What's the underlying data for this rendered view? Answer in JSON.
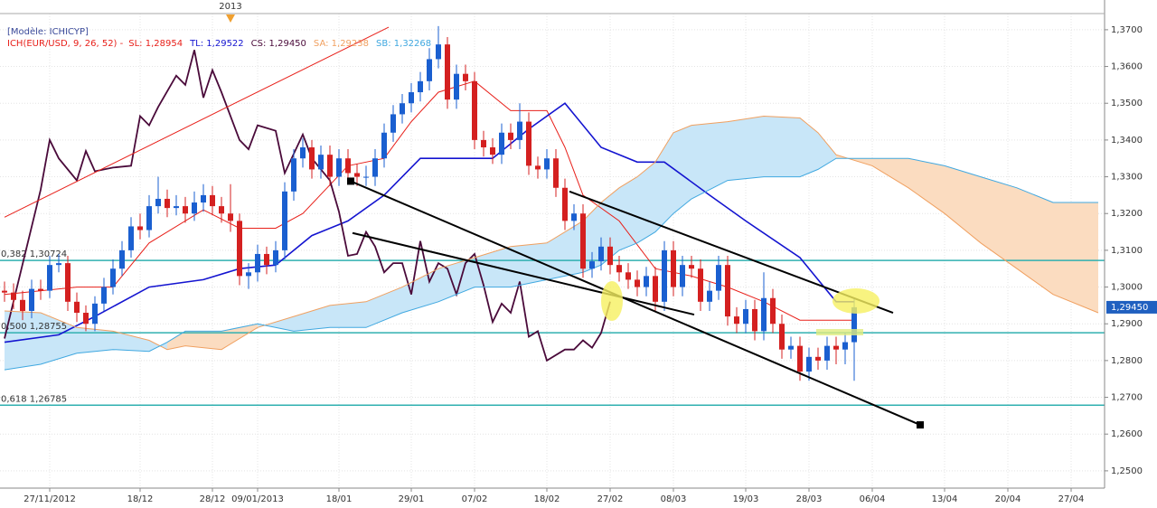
{
  "chart_data": {
    "type": "candlestick",
    "title": "[Modèle: ICHICYP]",
    "indicator": "ICH(EUR/USD, 9, 26, 52) -",
    "xlim": [
      -0.5,
      121.7
    ],
    "xticks": [
      {
        "value": 5,
        "label": "27/11/2012"
      },
      {
        "value": 15,
        "label": "18/12"
      },
      {
        "value": 23,
        "label": "28/12"
      },
      {
        "value": 28,
        "label": "09/01/2013"
      },
      {
        "value": 37,
        "label": "18/01"
      },
      {
        "value": 45,
        "label": "29/01"
      },
      {
        "value": 52,
        "label": "07/02"
      },
      {
        "value": 60,
        "label": "18/02"
      },
      {
        "value": 67,
        "label": "27/02"
      },
      {
        "value": 74,
        "label": "08/03"
      },
      {
        "value": 82,
        "label": "19/03"
      },
      {
        "value": 89,
        "label": "28/03"
      },
      {
        "value": 96,
        "label": "06/04"
      },
      {
        "value": 104,
        "label": "13/04"
      },
      {
        "value": 111,
        "label": "20/04"
      },
      {
        "value": 118,
        "label": "27/04"
      }
    ],
    "ylim": [
      1.2453,
      1.3744
    ],
    "yticks": [
      {
        "value": 1.25,
        "label": "1,2500"
      },
      {
        "value": 1.26,
        "label": "1,2600"
      },
      {
        "value": 1.27,
        "label": "1,2700"
      },
      {
        "value": 1.28,
        "label": "1,2800"
      },
      {
        "value": 1.29,
        "label": "1,2900"
      },
      {
        "value": 1.3,
        "label": "1,3000"
      },
      {
        "value": 1.31,
        "label": "1,3100"
      },
      {
        "value": 1.32,
        "label": "1,3200"
      },
      {
        "value": 1.33,
        "label": "1,3300"
      },
      {
        "value": 1.34,
        "label": "1,3400"
      },
      {
        "value": 1.35,
        "label": "1,3500"
      },
      {
        "value": 1.36,
        "label": "1,3600"
      },
      {
        "value": 1.37,
        "label": "1,3700"
      }
    ],
    "grid": true,
    "up_color": "#1a5fd0",
    "down_color": "#d42020",
    "open": [
      1.299,
      1.2985,
      1.2965,
      1.2935,
      1.2995,
      1.299,
      1.306,
      1.3065,
      1.296,
      1.293,
      1.29,
      1.2955,
      1.3,
      1.305,
      1.31,
      1.3165,
      1.3155,
      1.322,
      1.324,
      1.3215,
      1.322,
      1.32,
      1.323,
      1.325,
      1.322,
      1.32,
      1.318,
      1.303,
      1.304,
      1.309,
      1.306,
      1.31,
      1.326,
      1.335,
      1.338,
      1.332,
      1.336,
      1.33,
      1.335,
      1.331,
      1.33,
      1.33,
      1.335,
      1.342,
      1.347,
      1.35,
      1.353,
      1.356,
      1.362,
      1.366,
      1.351,
      1.358,
      1.356,
      1.34,
      1.338,
      1.336,
      1.342,
      1.34,
      1.345,
      1.333,
      1.332,
      1.335,
      1.327,
      1.318,
      1.32,
      1.305,
      1.307,
      1.311,
      1.306,
      1.304,
      1.302,
      1.3,
      1.303,
      1.296,
      1.31,
      1.3,
      1.306,
      1.305,
      1.296,
      1.299,
      1.306,
      1.292,
      1.29,
      1.294,
      1.288,
      1.297,
      1.29,
      1.283,
      1.284,
      1.277,
      1.281,
      1.28,
      1.284,
      1.283,
      1.285
    ],
    "high": [
      1.3015,
      1.301,
      1.299,
      1.302,
      1.302,
      1.3085,
      1.309,
      1.3085,
      1.2985,
      1.295,
      1.2975,
      1.3025,
      1.3075,
      1.3125,
      1.319,
      1.32,
      1.325,
      1.33,
      1.3265,
      1.325,
      1.3245,
      1.326,
      1.328,
      1.3275,
      1.3245,
      1.328,
      1.32,
      1.3065,
      1.3115,
      1.311,
      1.3125,
      1.3285,
      1.3375,
      1.3405,
      1.34,
      1.3385,
      1.3385,
      1.3375,
      1.3375,
      1.3335,
      1.333,
      1.3375,
      1.3445,
      1.3495,
      1.3525,
      1.3555,
      1.3585,
      1.365,
      1.371,
      1.368,
      1.3605,
      1.3605,
      1.3585,
      1.3425,
      1.3405,
      1.3445,
      1.3445,
      1.35,
      1.3475,
      1.3355,
      1.3375,
      1.3375,
      1.3295,
      1.3225,
      1.3225,
      1.3095,
      1.3135,
      1.3135,
      1.3085,
      1.3065,
      1.3045,
      1.3055,
      1.3055,
      1.3125,
      1.3125,
      1.3085,
      1.3085,
      1.3075,
      1.3015,
      1.3085,
      1.3085,
      1.2945,
      1.2965,
      1.2965,
      1.304,
      1.2995,
      1.2925,
      1.2865,
      1.2865,
      1.2835,
      1.2835,
      1.2865,
      1.2865,
      1.2875,
      1.297
    ],
    "low": [
      1.296,
      1.294,
      1.291,
      1.2915,
      1.2965,
      1.297,
      1.304,
      1.2935,
      1.2905,
      1.288,
      1.288,
      1.2935,
      1.298,
      1.303,
      1.308,
      1.313,
      1.3135,
      1.32,
      1.319,
      1.3195,
      1.3175,
      1.318,
      1.3205,
      1.3195,
      1.3175,
      1.315,
      1.3005,
      1.2995,
      1.3015,
      1.3035,
      1.304,
      1.3075,
      1.3235,
      1.3325,
      1.3295,
      1.3295,
      1.3275,
      1.3275,
      1.3285,
      1.3275,
      1.3275,
      1.3275,
      1.3325,
      1.3395,
      1.3445,
      1.3475,
      1.3505,
      1.3535,
      1.3595,
      1.3485,
      1.3485,
      1.3535,
      1.3375,
      1.3355,
      1.3335,
      1.3335,
      1.3375,
      1.3375,
      1.3305,
      1.3295,
      1.3295,
      1.3245,
      1.3155,
      1.3155,
      1.3025,
      1.3025,
      1.3045,
      1.3035,
      1.3015,
      1.2995,
      1.2975,
      1.2975,
      1.2935,
      1.2935,
      1.2975,
      1.2975,
      1.3025,
      1.2935,
      1.2935,
      1.2965,
      1.2895,
      1.2875,
      1.2875,
      1.2855,
      1.2855,
      1.2875,
      1.2805,
      1.2805,
      1.2745,
      1.2745,
      1.2775,
      1.2775,
      1.279,
      1.279,
      1.2745
    ],
    "close": [
      1.2985,
      1.2965,
      1.2935,
      1.2995,
      1.299,
      1.306,
      1.3065,
      1.296,
      1.293,
      1.29,
      1.2955,
      1.3,
      1.305,
      1.31,
      1.3165,
      1.3155,
      1.322,
      1.324,
      1.3215,
      1.322,
      1.32,
      1.323,
      1.325,
      1.322,
      1.32,
      1.318,
      1.303,
      1.304,
      1.309,
      1.306,
      1.31,
      1.326,
      1.335,
      1.338,
      1.332,
      1.336,
      1.33,
      1.335,
      1.331,
      1.33,
      1.33,
      1.335,
      1.342,
      1.347,
      1.35,
      1.353,
      1.356,
      1.362,
      1.366,
      1.351,
      1.358,
      1.356,
      1.34,
      1.338,
      1.336,
      1.342,
      1.34,
      1.345,
      1.333,
      1.332,
      1.335,
      1.327,
      1.318,
      1.32,
      1.305,
      1.307,
      1.311,
      1.306,
      1.304,
      1.302,
      1.3,
      1.303,
      1.296,
      1.31,
      1.3,
      1.306,
      1.305,
      1.296,
      1.299,
      1.306,
      1.292,
      1.29,
      1.294,
      1.288,
      1.297,
      1.29,
      1.283,
      1.284,
      1.277,
      1.281,
      1.28,
      1.284,
      1.283,
      1.285,
      1.2945
    ],
    "series": [
      {
        "name": "SL: 1,28954",
        "color": "#e8201a",
        "x": [
          0,
          8,
          12,
          16,
          22,
          26,
          30,
          33,
          38,
          42,
          45,
          48,
          52,
          56,
          60,
          62,
          64,
          68,
          72,
          76,
          80,
          84,
          88,
          94
        ],
        "values": [
          1.298,
          1.3,
          1.3,
          1.312,
          1.321,
          1.316,
          1.316,
          1.32,
          1.333,
          1.335,
          1.345,
          1.353,
          1.356,
          1.348,
          1.348,
          1.338,
          1.325,
          1.318,
          1.305,
          1.303,
          1.3,
          1.296,
          1.291,
          1.291
        ]
      },
      {
        "name": "TL: 1,29522",
        "color": "#1414d0",
        "x": [
          0,
          6,
          10,
          16,
          22,
          26,
          30,
          34,
          38,
          42,
          46,
          50,
          54,
          58,
          62,
          66,
          70,
          73,
          78,
          82,
          88,
          92,
          94
        ],
        "values": [
          1.285,
          1.287,
          1.292,
          1.3,
          1.302,
          1.305,
          1.306,
          1.314,
          1.318,
          1.325,
          1.335,
          1.335,
          1.335,
          1.343,
          1.35,
          1.338,
          1.334,
          1.334,
          1.325,
          1.318,
          1.308,
          1.296,
          1.296
        ]
      },
      {
        "name": "CS: 1,29450",
        "color": "#4a0a3a",
        "x": [
          0,
          4,
          5,
          6,
          8,
          9,
          10,
          12,
          14,
          15,
          16,
          17,
          19,
          20,
          21,
          22,
          23,
          24,
          26,
          27,
          28,
          30,
          31,
          33,
          34,
          36,
          37,
          38,
          39,
          40,
          41,
          42,
          43,
          44,
          45,
          46,
          47,
          48,
          49,
          50,
          51,
          52,
          53,
          54,
          55,
          56,
          57,
          58,
          59,
          60,
          62,
          63,
          64,
          65,
          66,
          67
        ],
        "values": [
          1.286,
          1.3265,
          1.34,
          1.335,
          1.329,
          1.337,
          1.3315,
          1.3325,
          1.333,
          1.3465,
          1.344,
          1.349,
          1.3575,
          1.355,
          1.3645,
          1.3515,
          1.359,
          1.353,
          1.34,
          1.3375,
          1.344,
          1.3425,
          1.331,
          1.3415,
          1.335,
          1.329,
          1.3205,
          1.3085,
          1.309,
          1.315,
          1.311,
          1.304,
          1.3065,
          1.3065,
          1.298,
          1.3125,
          1.3015,
          1.3065,
          1.305,
          1.298,
          1.3065,
          1.309,
          1.3005,
          1.2905,
          1.2955,
          1.293,
          1.3015,
          1.2865,
          1.288,
          1.28,
          1.283,
          1.283,
          1.2855,
          1.2835,
          1.2875,
          1.296
        ]
      },
      {
        "name": "SA: 1,29238",
        "color": "#f0a060",
        "x": [
          0,
          4,
          8,
          12,
          16,
          18,
          20,
          24,
          28,
          32,
          36,
          40,
          44,
          48,
          52,
          56,
          60,
          64,
          66,
          68,
          70,
          72,
          74,
          76,
          80,
          84,
          88,
          90,
          92,
          96,
          100,
          104,
          108,
          112,
          116,
          121
        ],
        "values": [
          1.2935,
          1.293,
          1.289,
          1.288,
          1.2855,
          1.283,
          1.284,
          1.283,
          1.289,
          1.292,
          1.295,
          1.296,
          1.3,
          1.305,
          1.308,
          1.311,
          1.312,
          1.318,
          1.323,
          1.327,
          1.33,
          1.334,
          1.342,
          1.344,
          1.345,
          1.3465,
          1.346,
          1.342,
          1.336,
          1.333,
          1.327,
          1.32,
          1.312,
          1.305,
          1.298,
          1.293
        ]
      },
      {
        "name": "SB: 1,32268",
        "color": "#40a8e0",
        "x": [
          0,
          4,
          8,
          12,
          16,
          18,
          20,
          24,
          28,
          32,
          36,
          40,
          44,
          48,
          52,
          56,
          60,
          64,
          66,
          68,
          70,
          72,
          74,
          76,
          80,
          84,
          88,
          90,
          92,
          96,
          100,
          104,
          108,
          112,
          116,
          121
        ],
        "values": [
          1.2775,
          1.279,
          1.282,
          1.283,
          1.2825,
          1.285,
          1.288,
          1.288,
          1.29,
          1.288,
          1.289,
          1.289,
          1.293,
          1.296,
          1.3,
          1.3,
          1.302,
          1.304,
          1.306,
          1.31,
          1.312,
          1.315,
          1.32,
          1.324,
          1.329,
          1.33,
          1.33,
          1.332,
          1.335,
          1.335,
          1.335,
          1.333,
          1.33,
          1.327,
          1.323,
          1.323
        ]
      }
    ],
    "cloud_colors": [
      "#c8e6f8",
      "#fbdcc0"
    ],
    "levels": [
      {
        "value": 1.30724,
        "label": "0,382 1,30724"
      },
      {
        "value": 1.28755,
        "label": "0,500 1,28755"
      },
      {
        "value": 1.26785,
        "label": "0,618 1,26785"
      }
    ],
    "level_color": "#30b0b0",
    "trendlines": [
      {
        "color": "#e8201a",
        "x": [
          0,
          42.5
        ],
        "values": [
          1.319,
          1.3707
        ]
      },
      {
        "color": "#000000",
        "x": [
          38.3,
          101.3
        ],
        "values": [
          1.3288,
          1.2625
        ]
      },
      {
        "color": "#000000",
        "x": [
          38.5,
          76.3
        ],
        "values": [
          1.3147,
          1.2925
        ]
      },
      {
        "color": "#000000",
        "x": [
          62.5,
          98.3
        ],
        "values": [
          1.326,
          1.293
        ]
      }
    ],
    "last_price": {
      "value": 1.2945,
      "label": "1,29450"
    },
    "year_marker": {
      "value": 25,
      "label": "2013"
    }
  }
}
